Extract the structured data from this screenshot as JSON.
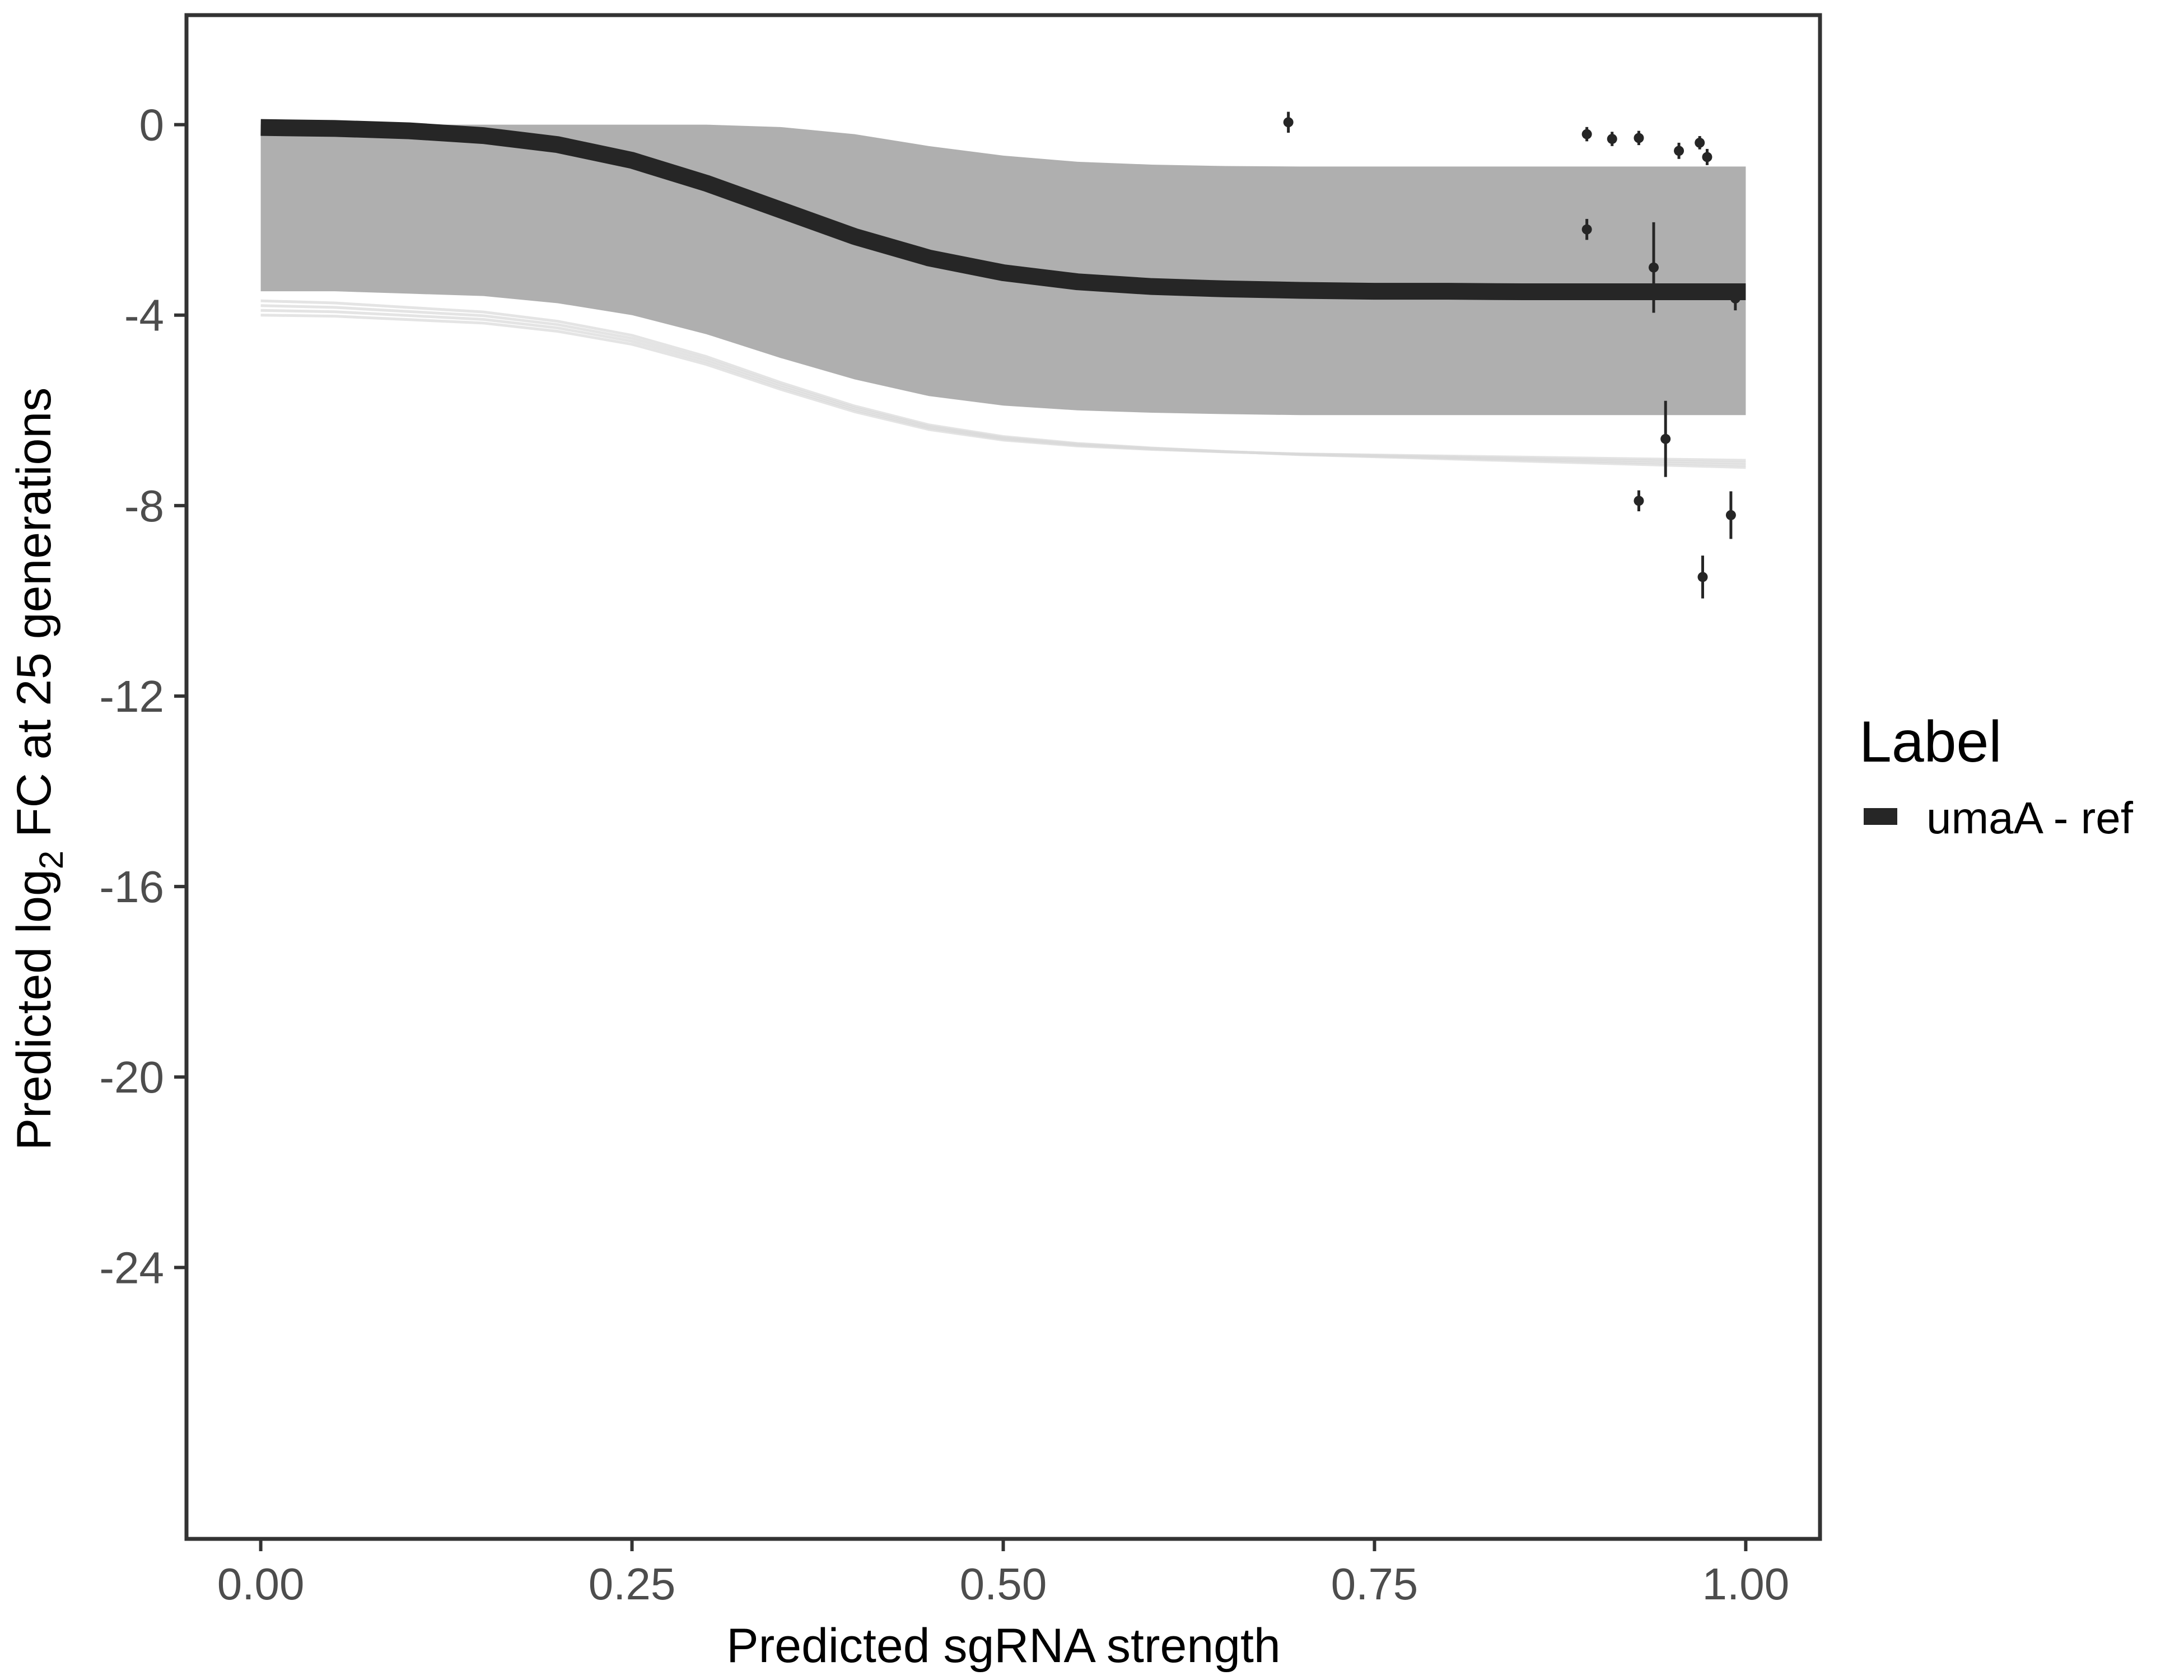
{
  "chart_data": {
    "type": "line",
    "xlabel": "Predicted sgRNA strength",
    "ylabel": {
      "prefix": "Predicted  log",
      "subscript": "2",
      "suffix": " FC at 25 generations"
    },
    "xlim": [
      -0.05,
      1.05
    ],
    "ylim": [
      -29.7,
      2.3
    ],
    "x_ticks": [
      0.0,
      0.25,
      0.5,
      0.75,
      1.0
    ],
    "x_tick_labels": [
      "0.00",
      "0.25",
      "0.50",
      "0.75",
      "1.00"
    ],
    "y_ticks": [
      0,
      -4,
      -8,
      -12,
      -16,
      -20,
      -24
    ],
    "y_tick_labels": [
      "0",
      "-4",
      "-8",
      "-12",
      "-16",
      "-20",
      "-24"
    ],
    "grid": false,
    "legend": {
      "title": "Label",
      "position": "right",
      "entries": [
        {
          "name": "umaA - ref",
          "color": "#262626"
        }
      ]
    },
    "fit_curve": {
      "name": "umaA - ref",
      "color": "#262626",
      "x": [
        0.0,
        0.05,
        0.1,
        0.15,
        0.2,
        0.25,
        0.3,
        0.35,
        0.4,
        0.45,
        0.5,
        0.55,
        0.6,
        0.65,
        0.7,
        0.75,
        0.8,
        0.85,
        0.9,
        0.95,
        1.0
      ],
      "y": [
        -0.06,
        -0.08,
        -0.13,
        -0.23,
        -0.42,
        -0.75,
        -1.23,
        -1.79,
        -2.35,
        -2.8,
        -3.11,
        -3.3,
        -3.4,
        -3.45,
        -3.48,
        -3.5,
        -3.5,
        -3.51,
        -3.51,
        -3.51,
        -3.51
      ]
    },
    "posterior_band": {
      "color": "#a6a6a6",
      "x": [
        0.0,
        0.05,
        0.1,
        0.15,
        0.2,
        0.25,
        0.3,
        0.35,
        0.4,
        0.45,
        0.5,
        0.55,
        0.6,
        0.65,
        0.7,
        0.75,
        0.8,
        0.85,
        0.9,
        0.95,
        1.0
      ],
      "upper": [
        0.0,
        0.0,
        0.0,
        0.0,
        0.0,
        0.0,
        0.0,
        -0.05,
        -0.2,
        -0.45,
        -0.65,
        -0.78,
        -0.84,
        -0.87,
        -0.88,
        -0.88,
        -0.88,
        -0.88,
        -0.88,
        -0.88,
        -0.88
      ],
      "lower": [
        -3.5,
        -3.5,
        -3.55,
        -3.6,
        -3.75,
        -4.0,
        -4.4,
        -4.9,
        -5.35,
        -5.7,
        -5.9,
        -6.0,
        -6.05,
        -6.08,
        -6.1,
        -6.1,
        -6.1,
        -6.1,
        -6.1,
        -6.1,
        -6.1
      ]
    },
    "points": [
      {
        "x": 0.692,
        "y": 0.05,
        "lo": -0.17,
        "hi": 0.27
      },
      {
        "x": 0.893,
        "y": -0.2,
        "lo": -0.35,
        "hi": -0.05
      },
      {
        "x": 0.893,
        "y": -2.2,
        "lo": -2.42,
        "hi": -1.98
      },
      {
        "x": 0.91,
        "y": -0.3,
        "lo": -0.45,
        "hi": -0.15
      },
      {
        "x": 0.928,
        "y": -0.28,
        "lo": -0.43,
        "hi": -0.13
      },
      {
        "x": 0.928,
        "y": -7.9,
        "lo": -8.12,
        "hi": -7.68
      },
      {
        "x": 0.938,
        "y": -3.0,
        "lo": -3.95,
        "hi": -2.05
      },
      {
        "x": 0.946,
        "y": -6.6,
        "lo": -7.4,
        "hi": -5.8
      },
      {
        "x": 0.955,
        "y": -0.55,
        "lo": -0.72,
        "hi": -0.38
      },
      {
        "x": 0.969,
        "y": -0.38,
        "lo": -0.52,
        "hi": -0.24
      },
      {
        "x": 0.971,
        "y": -9.5,
        "lo": -9.95,
        "hi": -9.05
      },
      {
        "x": 0.974,
        "y": -0.68,
        "lo": -0.85,
        "hi": -0.51
      },
      {
        "x": 0.99,
        "y": -8.2,
        "lo": -8.7,
        "hi": -7.7
      },
      {
        "x": 0.993,
        "y": -3.65,
        "lo": -3.9,
        "hi": -3.45
      }
    ]
  }
}
